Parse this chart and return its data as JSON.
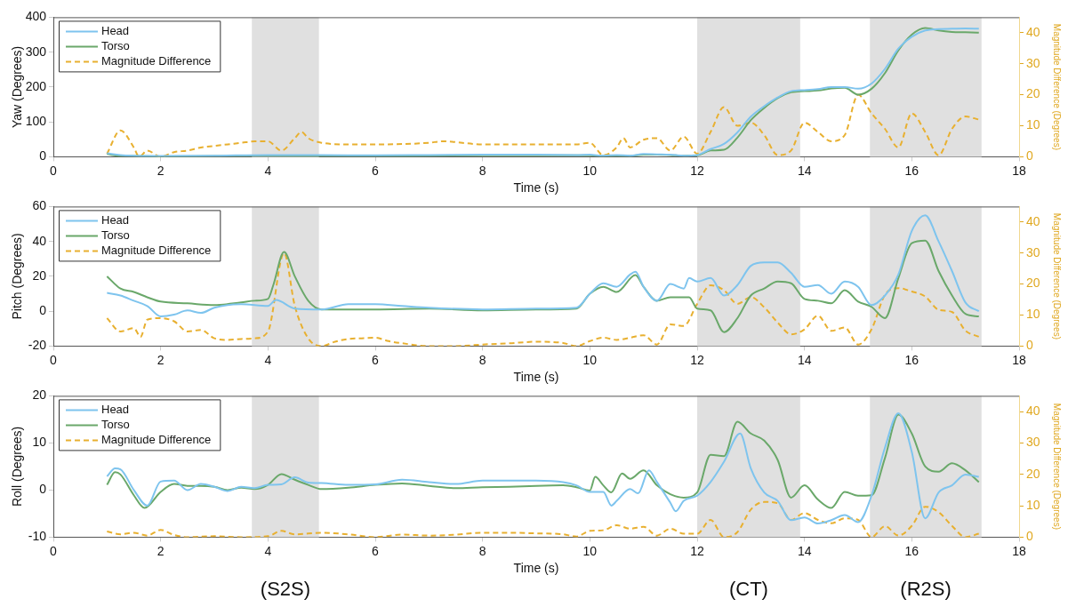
{
  "chart_data": [
    {
      "type": "line",
      "xlabel": "Time (s)",
      "ylabel": "Yaw (Degrees)",
      "y2label": "Magnitude Difference (Degrees)",
      "xlim": [
        0,
        18
      ],
      "xticks": [
        0,
        2,
        4,
        6,
        8,
        10,
        12,
        14,
        16,
        18
      ],
      "ylim": [
        0,
        400
      ],
      "yticks": [
        0,
        100,
        200,
        300,
        400
      ],
      "y2lim": [
        0,
        45
      ],
      "y2ticks": [
        0,
        10,
        20,
        30,
        40
      ],
      "legend": "top left",
      "marker": "none",
      "bands": [
        {
          "axis": "x",
          "from": 3.7,
          "to": 4.95,
          "color": "#e0e0e0"
        },
        {
          "axis": "x",
          "from": 12,
          "to": 13.92,
          "color": "#e0e0e0"
        },
        {
          "axis": "x",
          "from": 15.22,
          "to": 17.3,
          "color": "#e0e0e0"
        }
      ],
      "series": [
        {
          "name": "Head",
          "color": "#7ec4ee",
          "line_style": "solid",
          "x": [
            1,
            1.25,
            1.5,
            2,
            3,
            4,
            5,
            6,
            7,
            8,
            9,
            9.75,
            10,
            10.25,
            10.5,
            10.75,
            11,
            11.25,
            11.5,
            11.75,
            12,
            12.25,
            12.5,
            12.75,
            13,
            13.25,
            13.5,
            13.75,
            14,
            14.25,
            14.5,
            14.75,
            15,
            15.25,
            15.5,
            15.75,
            16,
            16.25,
            16.5,
            16.75,
            17,
            17.25
          ],
          "values": [
            10,
            5,
            3,
            2,
            3,
            5,
            5,
            4,
            5,
            6,
            6,
            5,
            6,
            3,
            5,
            3,
            8,
            7,
            6,
            3,
            5,
            22,
            37,
            70,
            115,
            145,
            170,
            188,
            191,
            194,
            200,
            200,
            195,
            210,
            252,
            310,
            344,
            362,
            366,
            367,
            368,
            367
          ]
        },
        {
          "name": "Torso",
          "color": "#6aa86a",
          "line_style": "solid",
          "x": [
            1,
            1.25,
            1.5,
            2,
            3,
            4,
            5,
            6,
            7,
            8,
            9,
            9.75,
            10,
            10.25,
            10.5,
            10.75,
            11,
            11.25,
            11.5,
            11.75,
            12,
            12.25,
            12.5,
            12.75,
            13,
            13.25,
            13.5,
            13.75,
            14,
            14.25,
            14.5,
            14.75,
            15,
            15.25,
            15.5,
            15.75,
            16,
            16.25,
            16.5,
            16.75,
            17,
            17.25
          ],
          "values": [
            8,
            2,
            2,
            1,
            2,
            3,
            2,
            2,
            3,
            4,
            4,
            4,
            4,
            2,
            3,
            2,
            6,
            6,
            5,
            3,
            4,
            18,
            20,
            55,
            105,
            140,
            168,
            185,
            188,
            190,
            196,
            198,
            178,
            195,
            240,
            305,
            350,
            369,
            362,
            358,
            357,
            356
          ]
        },
        {
          "name": "Magnitude Difference",
          "color": "#e8b030",
          "line_style": "dashed",
          "axis": "y2",
          "x": [
            1,
            1.25,
            1.5,
            1.6,
            1.75,
            2,
            2.25,
            2.5,
            2.75,
            3,
            3.25,
            3.5,
            3.75,
            4,
            4.25,
            4.5,
            4.625,
            4.75,
            5,
            5.5,
            6,
            7,
            7.25,
            8,
            9,
            9.75,
            10,
            10.25,
            10.5,
            10.625,
            10.75,
            11,
            11.25,
            11.5,
            11.75,
            12,
            12.25,
            12.5,
            12.75,
            13,
            13.25,
            13.5,
            13.75,
            14,
            14.25,
            14.5,
            14.75,
            15,
            15.25,
            15.5,
            15.75,
            16,
            16.25,
            16.5,
            16.75,
            17,
            17.25
          ],
          "values": [
            1,
            8.5,
            3,
            0,
            2,
            0,
            1.5,
            2,
            3,
            3.5,
            4,
            4.5,
            5,
            5,
            2,
            6,
            8,
            6,
            4.5,
            4,
            4,
            4.5,
            5,
            4,
            4,
            4,
            4.5,
            0.5,
            3,
            6,
            3,
            5.5,
            6,
            2,
            6.5,
            1,
            8,
            16,
            10,
            11,
            7,
            0.5,
            2,
            11,
            8,
            5,
            7,
            20,
            14,
            9,
            3,
            14,
            8,
            0.5,
            9,
            13,
            12
          ]
        }
      ]
    },
    {
      "type": "line",
      "xlabel": "Time (s)",
      "ylabel": "Pitch (Degrees)",
      "y2label": "Magnitude Difference (Degrees)",
      "xlim": [
        0,
        18
      ],
      "xticks": [
        0,
        2,
        4,
        6,
        8,
        10,
        12,
        14,
        16,
        18
      ],
      "ylim": [
        -20,
        60
      ],
      "yticks": [
        -20,
        0,
        20,
        40,
        60
      ],
      "y2lim": [
        0,
        45
      ],
      "y2ticks": [
        0,
        10,
        20,
        30,
        40
      ],
      "legend": "top left",
      "marker": "none",
      "bands": [
        {
          "axis": "x",
          "from": 3.7,
          "to": 4.95,
          "color": "#e0e0e0"
        },
        {
          "axis": "x",
          "from": 12,
          "to": 13.92,
          "color": "#e0e0e0"
        },
        {
          "axis": "x",
          "from": 15.22,
          "to": 17.3,
          "color": "#e0e0e0"
        }
      ],
      "series": [
        {
          "name": "Head",
          "color": "#7ec4ee",
          "line_style": "solid",
          "x": [
            1,
            1.25,
            1.5,
            1.75,
            2,
            2.25,
            2.5,
            2.75,
            3,
            3.5,
            4,
            4.15,
            4.5,
            5,
            5.5,
            6,
            6.5,
            7,
            8,
            9,
            9.75,
            10,
            10.25,
            10.5,
            10.75,
            10.85,
            11,
            11.25,
            11.5,
            11.75,
            11.85,
            12,
            12.25,
            12.5,
            12.75,
            13,
            13.25,
            13.5,
            13.75,
            14,
            14.25,
            14.5,
            14.75,
            15,
            15.25,
            15.5,
            15.75,
            16,
            16.25,
            16.5,
            16.75,
            17,
            17.25
          ],
          "values": [
            10.5,
            9,
            6,
            3,
            -3,
            -2,
            0.4,
            -1,
            2,
            4,
            3,
            6.4,
            1.5,
            1,
            4,
            4,
            3,
            2,
            1,
            1.5,
            2,
            10,
            16,
            14,
            21,
            22.6,
            14,
            6,
            15.6,
            13,
            19,
            17,
            19,
            9,
            15,
            26,
            28,
            28,
            22,
            14,
            15,
            10,
            17,
            14,
            3.5,
            9,
            21,
            46,
            55,
            40,
            23,
            5,
            0
          ]
        },
        {
          "name": "Torso",
          "color": "#6aa86a",
          "line_style": "solid",
          "x": [
            1,
            1.25,
            1.5,
            1.75,
            2,
            2.5,
            3,
            3.5,
            3.75,
            4,
            4.1,
            4.3,
            4.5,
            4.75,
            5,
            6,
            7,
            8,
            9,
            9.75,
            10,
            10.25,
            10.5,
            10.85,
            11,
            11.25,
            11.5,
            11.85,
            12,
            12.25,
            12.5,
            12.75,
            13,
            13.25,
            13.5,
            13.75,
            14,
            14.25,
            14.5,
            14.75,
            15,
            15.25,
            15.5,
            15.75,
            16,
            16.25,
            16.5,
            16.75,
            17,
            17.25
          ],
          "values": [
            20,
            13,
            11,
            8,
            5.5,
            4.5,
            3.5,
            5,
            6,
            7,
            15,
            34,
            20,
            6,
            1,
            1,
            1.5,
            0.5,
            1,
            1.5,
            10,
            14,
            11,
            20.7,
            14,
            6,
            8,
            8,
            1.5,
            0.5,
            -12,
            -4,
            9,
            13,
            17,
            16,
            7,
            6,
            4.5,
            12,
            5.5,
            2.5,
            -4,
            19,
            39,
            40.5,
            23,
            9,
            -1.5,
            -3
          ]
        },
        {
          "name": "Magnitude Difference",
          "color": "#e8b030",
          "line_style": "dashed",
          "axis": "y2",
          "x": [
            1,
            1.25,
            1.5,
            1.625,
            1.75,
            2,
            2.25,
            2.5,
            2.75,
            3,
            3.25,
            3.5,
            3.75,
            4,
            4.3,
            4.5,
            4.75,
            5,
            5.25,
            5.5,
            5.75,
            6,
            6.25,
            6.5,
            7,
            7.5,
            8,
            8.5,
            9,
            9.5,
            9.75,
            10,
            10.25,
            10.5,
            10.75,
            11,
            11.25,
            11.5,
            11.75,
            12,
            12.25,
            12.5,
            12.75,
            13,
            13.25,
            13.5,
            13.75,
            14,
            14.25,
            14.5,
            14.75,
            15,
            15.25,
            15.5,
            15.75,
            16,
            16.25,
            16.5,
            16.75,
            17,
            17.25
          ],
          "values": [
            9,
            4.7,
            5.8,
            3,
            8.5,
            9,
            8,
            4.7,
            5.2,
            2.5,
            2,
            2.3,
            2.5,
            4.7,
            30,
            13,
            2.5,
            0,
            1.4,
            2.3,
            2.5,
            2.7,
            1.6,
            0.9,
            0,
            0,
            0.5,
            0.9,
            1.4,
            1,
            0,
            1.6,
            2.7,
            2,
            2.7,
            3.5,
            0.5,
            7,
            6.5,
            13.6,
            19.6,
            18,
            13.6,
            15.8,
            12.5,
            7.6,
            3.8,
            5.4,
            9.8,
            4.9,
            6,
            0.5,
            5.4,
            16.5,
            18.7,
            17.6,
            16,
            11.7,
            11,
            5,
            3
          ]
        }
      ]
    },
    {
      "type": "line",
      "xlabel": "Time (s)",
      "ylabel": "Roll (Degrees)",
      "y2label": "Magnitude Difference (Degrees)",
      "xlim": [
        0,
        18
      ],
      "xticks": [
        0,
        2,
        4,
        6,
        8,
        10,
        12,
        14,
        16,
        18
      ],
      "ylim": [
        -10,
        20
      ],
      "yticks": [
        -10,
        0,
        10,
        20
      ],
      "y2lim": [
        0,
        45
      ],
      "y2ticks": [
        0,
        10,
        20,
        30,
        40
      ],
      "legend": "top left",
      "marker": "none",
      "bands": [
        {
          "axis": "x",
          "from": 3.7,
          "to": 4.95,
          "color": "#e0e0e0",
          "label": "(S2S)"
        },
        {
          "axis": "x",
          "from": 12,
          "to": 13.92,
          "color": "#e0e0e0",
          "label": "(CT)"
        },
        {
          "axis": "x",
          "from": 15.22,
          "to": 17.3,
          "color": "#e0e0e0",
          "label": "(R2S)"
        }
      ],
      "series": [
        {
          "name": "Head",
          "color": "#7ec4ee",
          "line_style": "solid",
          "x": [
            1,
            1.15,
            1.25,
            1.5,
            1.75,
            2,
            2.25,
            2.5,
            2.75,
            3,
            3.25,
            3.5,
            3.75,
            4,
            4.25,
            4.5,
            4.75,
            5,
            5.5,
            6,
            6.5,
            7,
            7.5,
            8,
            8.5,
            9,
            9.5,
            9.75,
            10,
            10.25,
            10.4,
            10.5,
            10.75,
            10.9,
            11.1,
            11.25,
            11.5,
            11.6,
            11.75,
            12,
            12.25,
            12.5,
            12.8,
            13,
            13.25,
            13.5,
            13.75,
            14,
            14.25,
            14.5,
            14.75,
            15,
            15.25,
            15.5,
            15.75,
            16,
            16.25,
            16.5,
            16.75,
            17,
            17.25
          ],
          "values": [
            2.9,
            4.6,
            4.4,
            0,
            -3.3,
            1.8,
            2,
            0,
            1.3,
            0.7,
            -0.2,
            0.7,
            0.4,
            1.1,
            1.2,
            2.7,
            1.6,
            1.5,
            1.1,
            1.2,
            2.2,
            1.7,
            1.3,
            2,
            2,
            2,
            1.7,
            1,
            -0.4,
            -0.4,
            -3.3,
            -2.3,
            0.2,
            -0.7,
            4.2,
            1.7,
            -2.7,
            -4.5,
            -2.3,
            -1.2,
            1.7,
            6,
            12,
            4.6,
            -0.5,
            -2.3,
            -6.4,
            -5.8,
            -7.1,
            -6.4,
            -5.3,
            -6.8,
            -1.2,
            9,
            16.3,
            8.1,
            -6,
            -0.5,
            1,
            3.3,
            2.8
          ]
        },
        {
          "name": "Torso",
          "color": "#6aa86a",
          "line_style": "solid",
          "x": [
            1,
            1.15,
            1.25,
            1.5,
            1.7,
            2,
            2.25,
            2.5,
            2.75,
            3,
            3.25,
            3.5,
            3.75,
            4,
            4.25,
            4.5,
            4.75,
            5,
            5.5,
            6,
            6.5,
            7,
            7.5,
            8,
            8.5,
            9,
            9.5,
            9.75,
            10,
            10.1,
            10.25,
            10.4,
            10.6,
            10.75,
            11,
            11.25,
            11.5,
            11.75,
            12,
            12.25,
            12.5,
            12.75,
            13,
            13.25,
            13.5,
            13.75,
            14,
            14.25,
            14.5,
            14.75,
            15,
            15.25,
            15.5,
            15.75,
            16,
            16.25,
            16.5,
            16.75,
            17,
            17.25
          ],
          "values": [
            1.1,
            3.8,
            3.3,
            -1.1,
            -3.8,
            -0.4,
            1.3,
            0.9,
            0.9,
            0.7,
            0,
            0.5,
            0.2,
            1.1,
            3.4,
            2.2,
            1.1,
            0.2,
            0.5,
            1.1,
            1.4,
            0.9,
            0.4,
            0.6,
            0.7,
            0.9,
            1,
            0.6,
            -0.1,
            2.8,
            1,
            -0.5,
            3.5,
            2.4,
            4.2,
            1,
            -0.9,
            -1.6,
            -0.5,
            7.5,
            7.2,
            14.5,
            12,
            10.5,
            6.4,
            -1.6,
            1,
            -2,
            -3.8,
            -0.4,
            -1.2,
            -1.1,
            6.8,
            16,
            12,
            5,
            3.9,
            5.7,
            4.2,
            1.7
          ]
        },
        {
          "name": "Magnitude Difference",
          "color": "#e8b030",
          "line_style": "dashed",
          "axis": "y2",
          "x": [
            1,
            1.25,
            1.5,
            1.75,
            2,
            2.25,
            2.5,
            3,
            3.5,
            4,
            4.25,
            4.5,
            5,
            5.5,
            6,
            6.5,
            7,
            7.5,
            8,
            8.5,
            9,
            9.5,
            9.75,
            10,
            10.25,
            10.5,
            10.75,
            11,
            11.25,
            11.5,
            11.75,
            12,
            12.25,
            12.5,
            12.75,
            13,
            13.25,
            13.5,
            13.75,
            14,
            14.25,
            14.5,
            14.75,
            15,
            15.25,
            15.5,
            15.75,
            16,
            16.25,
            16.5,
            16.75,
            17,
            17.25
          ],
          "values": [
            1.8,
            0.9,
            1.4,
            0.5,
            2.3,
            0.7,
            0,
            0.3,
            0,
            0.3,
            2,
            0.9,
            1.4,
            0.9,
            0,
            0.8,
            0.5,
            0.8,
            1.4,
            1.4,
            1.2,
            0.9,
            0.2,
            2,
            2.2,
            3.8,
            2.7,
            3.3,
            0.5,
            2.7,
            1.1,
            1.1,
            5.5,
            0,
            1.6,
            8.8,
            11.2,
            10.8,
            5.5,
            7.7,
            5.5,
            4.4,
            6,
            5.5,
            0,
            3.5,
            0.5,
            3.6,
            9.7,
            8,
            3.6,
            0,
            1.1
          ]
        }
      ]
    }
  ]
}
